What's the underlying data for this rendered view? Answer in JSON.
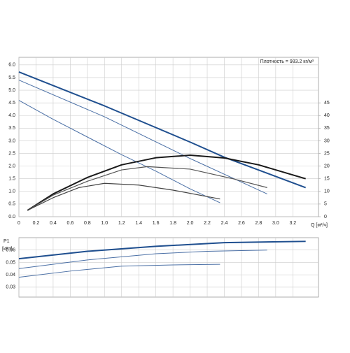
{
  "chart_data": [
    {
      "type": "line",
      "annotation": "Плотность = 983.2 кг/м³",
      "xlabel": "Q [м³/ч]",
      "xlim": [
        0,
        3.5
      ],
      "ylim": [
        0,
        6.3
      ],
      "y2lim": [
        0,
        63
      ],
      "xticks": [
        0,
        0.2,
        0.4,
        0.6,
        0.8,
        {
          "value": 1,
          "label": "1.0"
        },
        1.2,
        1.4,
        1.6,
        1.8,
        {
          "value": 2,
          "label": "2.0"
        },
        2.2,
        2.4,
        2.6,
        2.8,
        {
          "value": 3,
          "label": "3.0"
        },
        3.2
      ],
      "yticks": [
        {
          "value": 0,
          "label": "0.0"
        },
        0.5,
        {
          "value": 1,
          "label": "1.0"
        },
        1.5,
        {
          "value": 2,
          "label": "2.0"
        },
        2.5,
        {
          "value": 3,
          "label": "3.0"
        },
        3.5,
        {
          "value": 4,
          "label": "4.0"
        },
        4.5,
        {
          "value": 5,
          "label": "5.0"
        },
        5.5,
        {
          "value": 6,
          "label": "6.0"
        }
      ],
      "y2ticks": [
        0,
        5,
        10,
        15,
        20,
        25,
        30,
        35,
        40,
        45
      ],
      "grid": true,
      "series": [
        {
          "color": "#1f4f8f",
          "width": 2,
          "x": [
            0,
            1,
            2,
            2.4,
            3.35
          ],
          "values": [
            5.72,
            4.38,
            2.95,
            2.35,
            1.15
          ]
        },
        {
          "color": "#4a6fa5",
          "width": 1,
          "x": [
            0,
            1,
            2,
            2.9
          ],
          "values": [
            5.4,
            3.95,
            2.3,
            0.9
          ]
        },
        {
          "color": "#4a6fa5",
          "width": 1,
          "x": [
            0,
            0.4,
            0.8,
            1.2,
            1.6,
            2.0,
            2.35
          ],
          "values": [
            4.6,
            3.85,
            3.15,
            2.45,
            1.8,
            1.1,
            0.55
          ]
        },
        {
          "color": "#1a1a1a",
          "width": 2,
          "axis": "y2",
          "x": [
            0.1,
            0.4,
            0.8,
            1.2,
            1.6,
            2.0,
            2.4,
            2.8,
            3.35
          ],
          "values": [
            2.5,
            9,
            15.5,
            20.5,
            23.3,
            24.3,
            23.2,
            20.5,
            15
          ]
        },
        {
          "color": "#555555",
          "width": 1.2,
          "axis": "y2",
          "x": [
            0.1,
            0.4,
            0.8,
            1.2,
            1.5,
            2.0,
            2.5,
            2.9
          ],
          "values": [
            2.5,
            8.5,
            14,
            18.5,
            19.8,
            18.8,
            15,
            11.5
          ]
        },
        {
          "color": "#444444",
          "width": 1.2,
          "axis": "y2",
          "x": [
            0.1,
            0.4,
            0.7,
            1.0,
            1.4,
            1.8,
            2.35
          ],
          "values": [
            2.5,
            7.5,
            11.5,
            13.2,
            12.5,
            10.5,
            7
          ]
        }
      ]
    },
    {
      "type": "line",
      "ylabel": "P1",
      "yunit": "[кВт]",
      "xlim": [
        0,
        3.5
      ],
      "ylim": [
        0.022,
        0.07
      ],
      "yticks": [
        0.03,
        0.04,
        0.05,
        0.06
      ],
      "grid": true,
      "series": [
        {
          "color": "#1f4f8f",
          "width": 2,
          "x": [
            0,
            0.8,
            1.6,
            2.4,
            3.35
          ],
          "values": [
            0.053,
            0.059,
            0.063,
            0.066,
            0.067
          ]
        },
        {
          "color": "#4a6fa5",
          "width": 1,
          "x": [
            0,
            0.8,
            1.6,
            2.2,
            2.9
          ],
          "values": [
            0.045,
            0.052,
            0.057,
            0.059,
            0.06
          ]
        },
        {
          "color": "#4a6fa5",
          "width": 1,
          "x": [
            0,
            0.6,
            1.2,
            1.8,
            2.35
          ],
          "values": [
            0.038,
            0.043,
            0.047,
            0.048,
            0.0485
          ]
        }
      ]
    }
  ]
}
